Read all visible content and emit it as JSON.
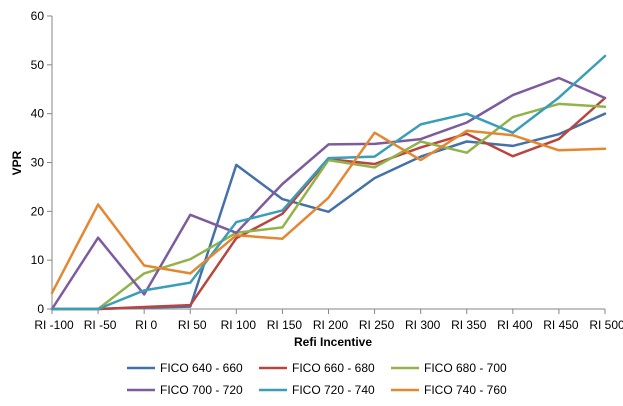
{
  "chart_data": {
    "type": "line",
    "title": "",
    "xlabel": "Refi Incentive",
    "ylabel": "VPR",
    "ylim": [
      0,
      60
    ],
    "yticks": [
      0,
      10,
      20,
      30,
      40,
      50,
      60
    ],
    "grid": false,
    "legend_position": "bottom",
    "categories": [
      "RI -100",
      "RI -50",
      "RI 0",
      "RI 50",
      "RI 100",
      "RI 150",
      "RI 200",
      "RI 250",
      "RI 300",
      "RI 350",
      "RI 400",
      "RI 450",
      "RI 500"
    ],
    "series": [
      {
        "name": "FICO 640 - 660",
        "color": "#4472A8",
        "values": [
          0,
          0,
          0.3,
          0.5,
          29.5,
          22.5,
          19.9,
          26.8,
          31.2,
          34.3,
          33.4,
          35.8,
          40
        ]
      },
      {
        "name": "FICO 660 - 680",
        "color": "#B8453F",
        "values": [
          0,
          0,
          0.4,
          0.8,
          14.5,
          19.5,
          30.7,
          29.7,
          33.1,
          35.9,
          31.3,
          34.8,
          43.2
        ]
      },
      {
        "name": "FICO 680 - 700",
        "color": "#92B34A",
        "values": [
          0,
          0,
          7.3,
          10.2,
          15.6,
          16.7,
          30.5,
          29,
          34.3,
          32,
          39.3,
          42,
          41.4
        ]
      },
      {
        "name": "FICO 700 - 720",
        "color": "#7D5C9E",
        "values": [
          0,
          14.6,
          3,
          19.3,
          15.6,
          25.6,
          33.7,
          33.8,
          34.8,
          38.2,
          43.8,
          47.3,
          43.2
        ]
      },
      {
        "name": "FICO 720 - 740",
        "color": "#3C9DB8",
        "values": [
          0,
          0,
          3.8,
          5.4,
          17.8,
          20.2,
          30.9,
          31.2,
          37.8,
          40,
          36.1,
          43.3,
          51.8
        ]
      },
      {
        "name": "FICO 740 - 760",
        "color": "#E48732",
        "values": [
          3.3,
          21.4,
          8.9,
          7.3,
          15.1,
          14.4,
          22.8,
          36.1,
          30.5,
          36.5,
          35.6,
          32.5,
          32.8
        ]
      }
    ]
  }
}
